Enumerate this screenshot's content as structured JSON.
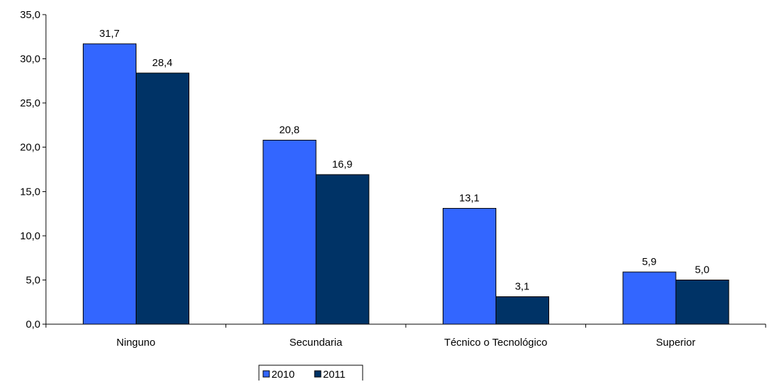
{
  "chart_data": {
    "type": "bar",
    "title": "",
    "xlabel": "",
    "ylabel": "",
    "categories": [
      "Ninguno",
      "Secundaria",
      "Técnico o Tecnológico",
      "Superior"
    ],
    "series": [
      {
        "name": "2010",
        "values": [
          31.7,
          20.8,
          13.1,
          5.9
        ],
        "value_labels": [
          "31,7",
          "20,8",
          "13,1",
          "5,9"
        ],
        "color": "#3366FF"
      },
      {
        "name": "2011",
        "values": [
          28.4,
          16.9,
          3.1,
          5.0
        ],
        "value_labels": [
          "28,4",
          "16,9",
          "3,1",
          "5,0"
        ],
        "color": "#003366"
      }
    ],
    "ylim": [
      0,
      35
    ],
    "yticks": [
      0,
      5,
      10,
      15,
      20,
      25,
      30,
      35
    ],
    "ytick_labels": [
      "0,0",
      "5,0",
      "10,0",
      "15,0",
      "20,0",
      "25,0",
      "30,0",
      "35,0"
    ],
    "grid": false,
    "legend": "bottom-center"
  }
}
